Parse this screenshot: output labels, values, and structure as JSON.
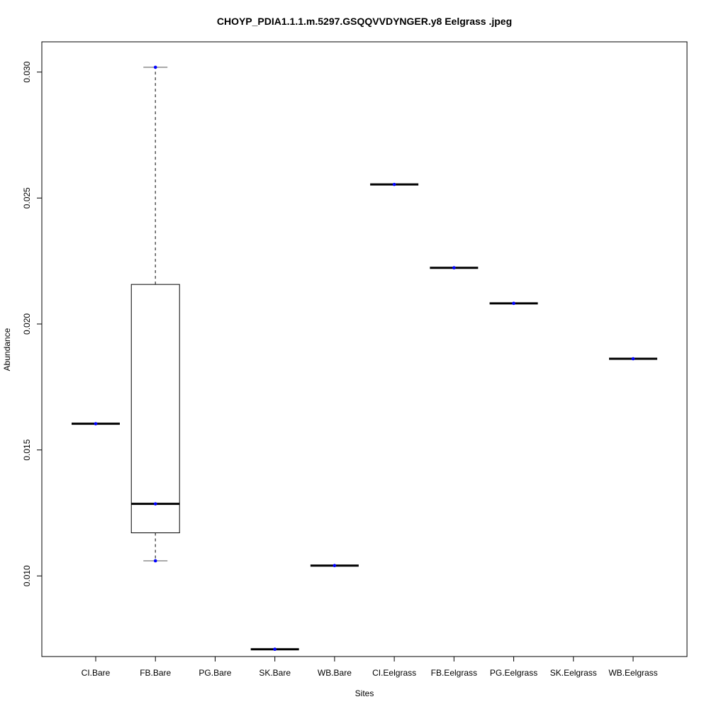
{
  "chart_data": {
    "type": "box",
    "title": "CHOYP_PDIA1.1.1.m.5297.GSQQVVDYNGER.y8 Eelgrass .jpeg",
    "xlabel": "Sites",
    "ylabel": "Abundance",
    "categories": [
      "CI.Bare",
      "FB.Bare",
      "PG.Bare",
      "SK.Bare",
      "WB.Bare",
      "CI.Eelgrass",
      "FB.Eelgrass",
      "PG.Eelgrass",
      "SK.Eelgrass",
      "WB.Eelgrass"
    ],
    "yticks": [
      "0.010",
      "0.015",
      "0.020",
      "0.025",
      "0.030"
    ],
    "ylim": [
      0.0068,
      0.0312
    ],
    "boxes": [
      {
        "category": "CI.Bare",
        "min": 0.01604,
        "q1": 0.01604,
        "median": 0.01604,
        "q3": 0.01604,
        "max": 0.01604,
        "points": [
          0.01604
        ]
      },
      {
        "category": "FB.Bare",
        "min": 0.0106,
        "q1": 0.01171,
        "median": 0.01286,
        "q3": 0.02157,
        "max": 0.03019,
        "points": [
          0.0106,
          0.01286,
          0.03019
        ]
      },
      {
        "category": "PG.Bare",
        "points": []
      },
      {
        "category": "SK.Bare",
        "min": 0.00709,
        "q1": 0.00709,
        "median": 0.00709,
        "q3": 0.00709,
        "max": 0.00709,
        "points": [
          0.00709
        ]
      },
      {
        "category": "WB.Bare",
        "min": 0.01041,
        "q1": 0.01041,
        "median": 0.01041,
        "q3": 0.01041,
        "max": 0.01041,
        "points": [
          0.01041
        ]
      },
      {
        "category": "CI.Eelgrass",
        "min": 0.02554,
        "q1": 0.02554,
        "median": 0.02554,
        "q3": 0.02554,
        "max": 0.02554,
        "points": [
          0.02554
        ]
      },
      {
        "category": "FB.Eelgrass",
        "min": 0.02223,
        "q1": 0.02223,
        "median": 0.02223,
        "q3": 0.02223,
        "max": 0.02223,
        "points": [
          0.02223
        ]
      },
      {
        "category": "PG.Eelgrass",
        "min": 0.02082,
        "q1": 0.02082,
        "median": 0.02082,
        "q3": 0.02082,
        "max": 0.02082,
        "points": [
          0.02082
        ]
      },
      {
        "category": "SK.Eelgrass",
        "points": []
      },
      {
        "category": "WB.Eelgrass",
        "min": 0.01862,
        "q1": 0.01862,
        "median": 0.01862,
        "q3": 0.01862,
        "max": 0.01862,
        "points": [
          0.01862
        ]
      }
    ],
    "colors": {
      "points": "#0000ff",
      "median": "#000000",
      "box": "#000000",
      "whisker": "#555555"
    },
    "grid": false,
    "legend": "none"
  }
}
